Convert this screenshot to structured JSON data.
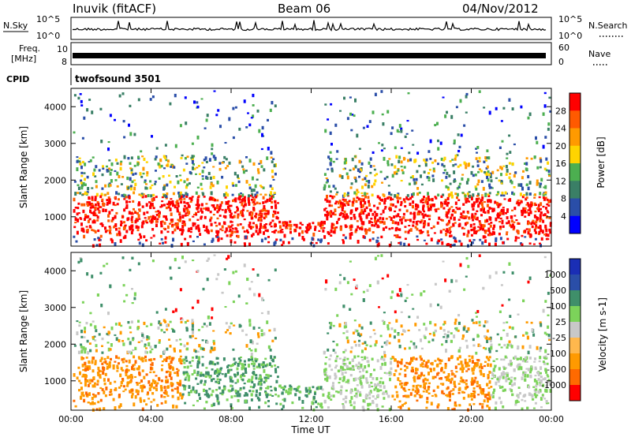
{
  "header": {
    "station": "Inuvik (fitACF)",
    "beam": "Beam 06",
    "date": "04/Nov/2012"
  },
  "left_labels": {
    "nsky": "N.Sky",
    "freq": "Freq.",
    "freq_unit": "[MHz]",
    "cpid": "CPID"
  },
  "right_labels": {
    "nsearch": "N.Search",
    "nave": "Nave"
  },
  "noise_ticks": [
    "10^5",
    "10^0"
  ],
  "freq_ticks": [
    "10",
    "8"
  ],
  "nave_ticks": [
    "60",
    "0"
  ],
  "cpid_text": "twofsound 3501",
  "colors": {
    "power": [
      "#0000ff",
      "#2a4ea8",
      "#3a7f66",
      "#4caf50",
      "#ffd400",
      "#ff9a00",
      "#ff5a00",
      "#ff0000"
    ],
    "velocity": [
      "#ff0000",
      "#ff6a00",
      "#ff9a00",
      "#ffb84d",
      "#c8c8c8",
      "#7cd35a",
      "#3f8f6a",
      "#2a4ea8",
      "#1a2eb5"
    ]
  },
  "chart_data": [
    {
      "type": "heatmap",
      "name": "power",
      "ylabel": "Slant Range [km]",
      "xlabel": "",
      "xticks": [
        "00:00",
        "04:00",
        "08:00",
        "12:00",
        "16:00",
        "20:00",
        "00:00"
      ],
      "yticks": [
        "1000",
        "2000",
        "3000",
        "4000"
      ],
      "ylim": [
        200,
        4500
      ],
      "colorbar": {
        "label": "Power [dB]",
        "ticks": [
          "28",
          "24",
          "20",
          "16",
          "12",
          "8",
          "4"
        ]
      }
    },
    {
      "type": "heatmap",
      "name": "velocity",
      "ylabel": "Slant Range [km]",
      "xlabel": "Time UT",
      "xticks": [
        "00:00",
        "04:00",
        "08:00",
        "12:00",
        "16:00",
        "20:00",
        "00:00"
      ],
      "yticks": [
        "1000",
        "2000",
        "3000",
        "4000"
      ],
      "ylim": [
        200,
        4500
      ],
      "colorbar": {
        "label": "Velocity [m s-1]",
        "ticks": [
          "1000",
          "500",
          "100",
          "25",
          "-25",
          "-100",
          "-500",
          "-1000"
        ]
      }
    }
  ]
}
